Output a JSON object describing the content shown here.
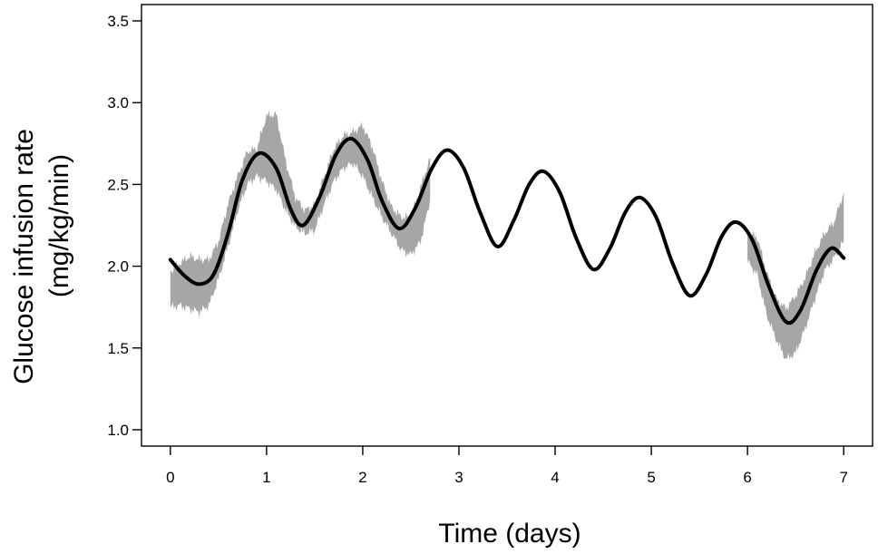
{
  "chart_data": {
    "type": "line",
    "title": "",
    "xlabel": "Time (days)",
    "ylabel_line1": "Glucose infusion rate",
    "ylabel_line2": "(mg/kg/min)",
    "xlim": [
      -0.3,
      7.3
    ],
    "ylim": [
      0.9,
      3.6
    ],
    "x_ticks": [
      0,
      1,
      2,
      3,
      4,
      5,
      6,
      7
    ],
    "x_tick_labels": [
      "0",
      "1",
      "2",
      "3",
      "4",
      "5",
      "6",
      "7"
    ],
    "y_ticks": [
      1.0,
      1.5,
      2.0,
      2.5,
      3.0,
      3.5
    ],
    "y_tick_labels": [
      "1.0",
      "1.5",
      "2.0",
      "2.5",
      "3.0",
      "3.5"
    ],
    "grid": false,
    "legend": "none",
    "model_curve": {
      "color": "#000000",
      "x": [
        0.0,
        0.15,
        0.3,
        0.45,
        0.6,
        0.75,
        0.92,
        1.1,
        1.25,
        1.38,
        1.55,
        1.72,
        1.88,
        2.05,
        2.2,
        2.38,
        2.55,
        2.72,
        2.88,
        3.05,
        3.22,
        3.4,
        3.57,
        3.73,
        3.88,
        4.05,
        4.22,
        4.4,
        4.57,
        4.73,
        4.88,
        5.05,
        5.22,
        5.4,
        5.57,
        5.73,
        5.88,
        6.05,
        6.22,
        6.4,
        6.55,
        6.72,
        6.87,
        7.0
      ],
      "y": [
        2.04,
        1.94,
        1.89,
        1.95,
        2.2,
        2.53,
        2.69,
        2.6,
        2.35,
        2.25,
        2.42,
        2.68,
        2.78,
        2.65,
        2.4,
        2.23,
        2.36,
        2.6,
        2.71,
        2.6,
        2.33,
        2.12,
        2.28,
        2.5,
        2.58,
        2.45,
        2.17,
        1.98,
        2.11,
        2.33,
        2.42,
        2.3,
        2.02,
        1.82,
        1.95,
        2.18,
        2.27,
        2.16,
        1.88,
        1.66,
        1.73,
        1.98,
        2.11,
        2.05
      ]
    },
    "observed_bands": [
      {
        "color": "#a6a6a6",
        "x": [
          0.0,
          0.1,
          0.2,
          0.3,
          0.4,
          0.5,
          0.6,
          0.7,
          0.8,
          0.9,
          1.0,
          1.1,
          1.2,
          1.3,
          1.4,
          1.5,
          1.6,
          1.7,
          1.8,
          1.9,
          2.0,
          2.1,
          2.2,
          2.3,
          2.4,
          2.5,
          2.6,
          2.7
        ],
        "lower": [
          1.75,
          1.76,
          1.74,
          1.72,
          1.76,
          1.92,
          2.12,
          2.34,
          2.5,
          2.55,
          2.52,
          2.47,
          2.34,
          2.24,
          2.2,
          2.22,
          2.38,
          2.52,
          2.6,
          2.63,
          2.55,
          2.42,
          2.3,
          2.2,
          2.1,
          2.07,
          2.15,
          2.4
        ],
        "upper": [
          1.97,
          2.02,
          2.06,
          2.04,
          2.04,
          2.15,
          2.38,
          2.55,
          2.7,
          2.72,
          2.92,
          2.93,
          2.64,
          2.42,
          2.34,
          2.38,
          2.55,
          2.72,
          2.8,
          2.82,
          2.86,
          2.73,
          2.52,
          2.36,
          2.3,
          2.3,
          2.48,
          2.66
        ]
      },
      {
        "color": "#a6a6a6",
        "x": [
          6.0,
          6.1,
          6.2,
          6.3,
          6.4,
          6.5,
          6.6,
          6.7,
          6.8,
          6.9,
          7.0
        ],
        "lower": [
          2.03,
          1.95,
          1.7,
          1.55,
          1.43,
          1.47,
          1.62,
          1.8,
          1.97,
          2.05,
          2.15
        ],
        "upper": [
          2.2,
          2.18,
          1.96,
          1.8,
          1.74,
          1.82,
          1.93,
          2.08,
          2.2,
          2.27,
          2.45
        ]
      }
    ]
  }
}
